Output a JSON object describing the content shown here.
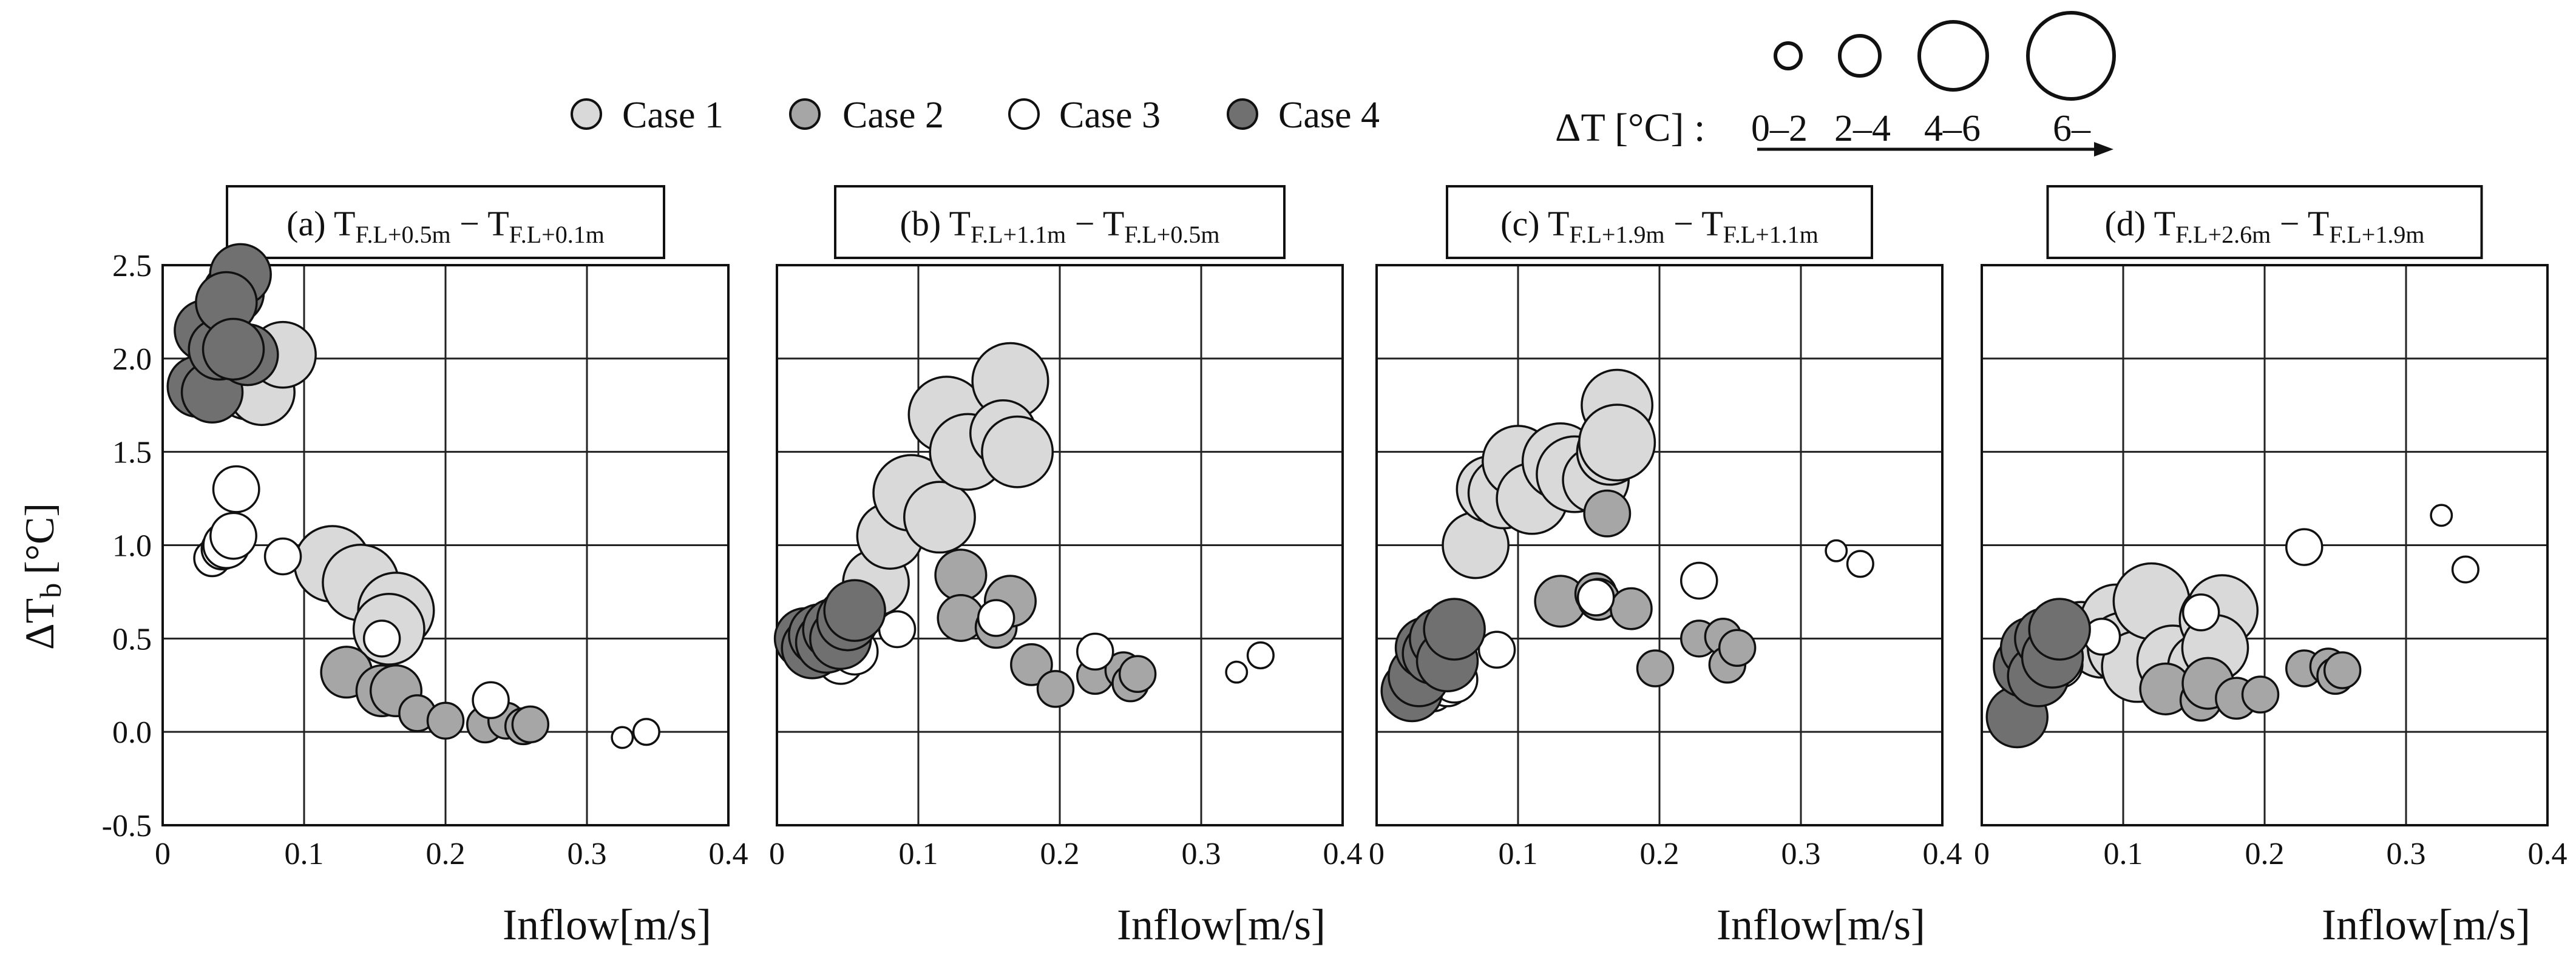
{
  "legend": {
    "entries": [
      {
        "label": "Case 1",
        "fill": "#d9d9d9"
      },
      {
        "label": "Case 2",
        "fill": "#a6a6a6"
      },
      {
        "label": "Case 3",
        "fill": "#ffffff"
      },
      {
        "label": "Case 4",
        "fill": "#707070"
      }
    ],
    "size_title": "ΔT [°C] :",
    "size_bins": [
      "0–2",
      "2–4",
      "4–6",
      "6–"
    ]
  },
  "chart_data": {
    "type": "scatter",
    "xlabel": "Inflow[m/s]",
    "ylabel_main": "ΔT",
    "ylabel_sub": "b",
    "ylabel_unit": "[°C]",
    "xlim": [
      0,
      0.4
    ],
    "ylim": [
      -0.5,
      2.5
    ],
    "xticks": [
      "0",
      "0.1",
      "0.2",
      "0.3",
      "0.4"
    ],
    "yticks": [
      "-0.5",
      "0.0",
      "0.5",
      "1.0",
      "1.5",
      "2.0",
      "2.5"
    ],
    "size_legend_values": [
      1,
      3,
      5,
      7
    ],
    "panels": [
      {
        "title_prefix": "(a) T",
        "sub1": "F.L+0.5m",
        "mid": " − T",
        "sub2": "F.L+0.1m",
        "series": [
          {
            "name": "Case 1",
            "points": [
              [
                0.06,
                1.85,
                5.5
              ],
              [
                0.07,
                1.82,
                5.5
              ],
              [
                0.085,
                2.02,
                5.5
              ],
              [
                0.12,
                0.9,
                6.5
              ],
              [
                0.14,
                0.8,
                6.5
              ],
              [
                0.165,
                0.65,
                6.5
              ],
              [
                0.16,
                0.55,
                6
              ]
            ]
          },
          {
            "name": "Case 2",
            "points": [
              [
                0.13,
                0.32,
                4
              ],
              [
                0.155,
                0.22,
                4
              ],
              [
                0.165,
                0.22,
                4
              ],
              [
                0.18,
                0.1,
                2.5
              ],
              [
                0.2,
                0.06,
                2.5
              ],
              [
                0.228,
                0.04,
                2.5
              ],
              [
                0.243,
                0.06,
                2.5
              ],
              [
                0.255,
                0.03,
                2.5
              ],
              [
                0.26,
                0.04,
                2.5
              ]
            ]
          },
          {
            "name": "Case 3",
            "points": [
              [
                0.035,
                0.93,
                2.5
              ],
              [
                0.042,
                0.98,
                3
              ],
              [
                0.045,
                1.0,
                3.5
              ],
              [
                0.05,
                1.05,
                3.5
              ],
              [
                0.052,
                1.3,
                3.5
              ],
              [
                0.085,
                0.94,
                2.5
              ],
              [
                0.155,
                0.5,
                2.5
              ],
              [
                0.232,
                0.17,
                2.5
              ],
              [
                0.325,
                -0.03,
                1
              ],
              [
                0.342,
                0.0,
                1.5
              ]
            ]
          },
          {
            "name": "Case 4",
            "points": [
              [
                0.025,
                1.85,
                5
              ],
              [
                0.035,
                1.82,
                5
              ],
              [
                0.03,
                2.15,
                5
              ],
              [
                0.04,
                2.05,
                5
              ],
              [
                0.05,
                2.35,
                5
              ],
              [
                0.055,
                2.45,
                5
              ],
              [
                0.06,
                2.02,
                5
              ],
              [
                0.045,
                2.3,
                5
              ],
              [
                0.05,
                2.05,
                5
              ]
            ]
          }
        ]
      },
      {
        "title_prefix": "(b) T",
        "sub1": "F.L+1.1m",
        "mid": " − T",
        "sub2": "F.L+0.5m",
        "series": [
          {
            "name": "Case 1",
            "points": [
              [
                0.07,
                0.8,
                5.5
              ],
              [
                0.08,
                1.05,
                5.5
              ],
              [
                0.095,
                1.28,
                6.5
              ],
              [
                0.115,
                1.15,
                6
              ],
              [
                0.12,
                1.7,
                6.5
              ],
              [
                0.135,
                1.5,
                6.5
              ],
              [
                0.165,
                1.88,
                6.5
              ],
              [
                0.16,
                1.6,
                5.5
              ],
              [
                0.17,
                1.5,
                6
              ]
            ]
          },
          {
            "name": "Case 2",
            "points": [
              [
                0.13,
                0.84,
                4
              ],
              [
                0.13,
                0.61,
                3.5
              ],
              [
                0.155,
                0.56,
                3
              ],
              [
                0.165,
                0.7,
                4
              ],
              [
                0.18,
                0.36,
                3
              ],
              [
                0.197,
                0.23,
                2.5
              ],
              [
                0.225,
                0.3,
                2.5
              ],
              [
                0.245,
                0.33,
                2.5
              ],
              [
                0.25,
                0.26,
                2.5
              ],
              [
                0.255,
                0.31,
                2.5
              ]
            ]
          },
          {
            "name": "Case 3",
            "points": [
              [
                0.035,
                0.45,
                2.5
              ],
              [
                0.04,
                0.4,
                3
              ],
              [
                0.045,
                0.38,
                3.5
              ],
              [
                0.05,
                0.45,
                3.5
              ],
              [
                0.055,
                0.43,
                3.5
              ],
              [
                0.085,
                0.55,
                2.5
              ],
              [
                0.155,
                0.61,
                2.5
              ],
              [
                0.225,
                0.43,
                2.5
              ],
              [
                0.325,
                0.32,
                1
              ],
              [
                0.342,
                0.41,
                1.5
              ]
            ]
          },
          {
            "name": "Case 4",
            "points": [
              [
                0.02,
                0.5,
                5
              ],
              [
                0.025,
                0.45,
                5
              ],
              [
                0.03,
                0.52,
                5
              ],
              [
                0.035,
                0.48,
                5
              ],
              [
                0.04,
                0.55,
                5
              ],
              [
                0.045,
                0.5,
                5
              ],
              [
                0.05,
                0.6,
                5
              ],
              [
                0.055,
                0.65,
                5
              ]
            ]
          }
        ]
      },
      {
        "title_prefix": "(c) T",
        "sub1": "F.L+1.9m",
        "mid": " − T",
        "sub2": "F.L+1.1m",
        "series": [
          {
            "name": "Case 1",
            "points": [
              [
                0.07,
                1.0,
                5.5
              ],
              [
                0.08,
                1.3,
                5.5
              ],
              [
                0.09,
                1.28,
                6
              ],
              [
                0.1,
                1.45,
                6
              ],
              [
                0.11,
                1.25,
                6
              ],
              [
                0.13,
                1.45,
                6.5
              ],
              [
                0.14,
                1.38,
                6.5
              ],
              [
                0.155,
                1.35,
                5.5
              ],
              [
                0.165,
                1.5,
                5.5
              ],
              [
                0.17,
                1.75,
                6
              ],
              [
                0.17,
                1.55,
                6.5
              ]
            ]
          },
          {
            "name": "Case 2",
            "points": [
              [
                0.13,
                0.7,
                4
              ],
              [
                0.155,
                0.74,
                3
              ],
              [
                0.157,
                0.71,
                3
              ],
              [
                0.163,
                1.17,
                3.5
              ],
              [
                0.18,
                0.66,
                3
              ],
              [
                0.197,
                0.34,
                2.5
              ],
              [
                0.228,
                0.5,
                2.5
              ],
              [
                0.245,
                0.51,
                2.5
              ],
              [
                0.248,
                0.36,
                2.5
              ],
              [
                0.255,
                0.45,
                2.5
              ]
            ]
          },
          {
            "name": "Case 3",
            "points": [
              [
                0.035,
                0.25,
                2.5
              ],
              [
                0.04,
                0.22,
                3
              ],
              [
                0.045,
                0.28,
                3
              ],
              [
                0.05,
                0.26,
                3.5
              ],
              [
                0.055,
                0.28,
                3.5
              ],
              [
                0.085,
                0.44,
                2.5
              ],
              [
                0.155,
                0.72,
                2.5
              ],
              [
                0.228,
                0.81,
                2.5
              ],
              [
                0.325,
                0.97,
                1
              ],
              [
                0.342,
                0.9,
                1.5
              ]
            ]
          },
          {
            "name": "Case 4",
            "points": [
              [
                0.025,
                0.22,
                5
              ],
              [
                0.03,
                0.3,
                5
              ],
              [
                0.035,
                0.45,
                5
              ],
              [
                0.04,
                0.42,
                5
              ],
              [
                0.045,
                0.5,
                5
              ],
              [
                0.05,
                0.38,
                5
              ],
              [
                0.055,
                0.55,
                5
              ]
            ]
          }
        ]
      },
      {
        "title_prefix": "(d) T",
        "sub1": "F.L+2.6m",
        "mid": " − T",
        "sub2": "F.L+1.9m",
        "series": [
          {
            "name": "Case 1",
            "points": [
              [
                0.06,
                0.5,
                5.5
              ],
              [
                0.07,
                0.52,
                5.5
              ],
              [
                0.085,
                0.48,
                6
              ],
              [
                0.095,
                0.6,
                6
              ],
              [
                0.1,
                0.45,
                6
              ],
              [
                0.11,
                0.35,
                6
              ],
              [
                0.12,
                0.7,
                6.5
              ],
              [
                0.135,
                0.38,
                6
              ],
              [
                0.155,
                0.35,
                5.5
              ],
              [
                0.165,
                0.6,
                6
              ],
              [
                0.17,
                0.65,
                6
              ],
              [
                0.165,
                0.45,
                5.5
              ]
            ]
          },
          {
            "name": "Case 2",
            "points": [
              [
                0.13,
                0.23,
                4
              ],
              [
                0.155,
                0.17,
                3
              ],
              [
                0.16,
                0.26,
                4
              ],
              [
                0.18,
                0.18,
                3
              ],
              [
                0.197,
                0.2,
                2.5
              ],
              [
                0.228,
                0.34,
                2.5
              ],
              [
                0.245,
                0.35,
                2.5
              ],
              [
                0.25,
                0.3,
                2.5
              ],
              [
                0.255,
                0.33,
                2.5
              ]
            ]
          },
          {
            "name": "Case 3",
            "points": [
              [
                0.035,
                0.45,
                2.5
              ],
              [
                0.04,
                0.42,
                3
              ],
              [
                0.045,
                0.38,
                3
              ],
              [
                0.05,
                0.4,
                3.5
              ],
              [
                0.055,
                0.36,
                3.5
              ],
              [
                0.085,
                0.51,
                2.5
              ],
              [
                0.155,
                0.64,
                2.5
              ],
              [
                0.228,
                0.99,
                2.5
              ],
              [
                0.325,
                1.16,
                1
              ],
              [
                0.342,
                0.87,
                1.5
              ]
            ]
          },
          {
            "name": "Case 4",
            "points": [
              [
                0.025,
                0.08,
                5
              ],
              [
                0.03,
                0.35,
                5
              ],
              [
                0.035,
                0.45,
                5
              ],
              [
                0.04,
                0.3,
                5
              ],
              [
                0.045,
                0.5,
                5
              ],
              [
                0.05,
                0.4,
                5
              ],
              [
                0.055,
                0.55,
                5
              ]
            ]
          }
        ]
      }
    ]
  }
}
